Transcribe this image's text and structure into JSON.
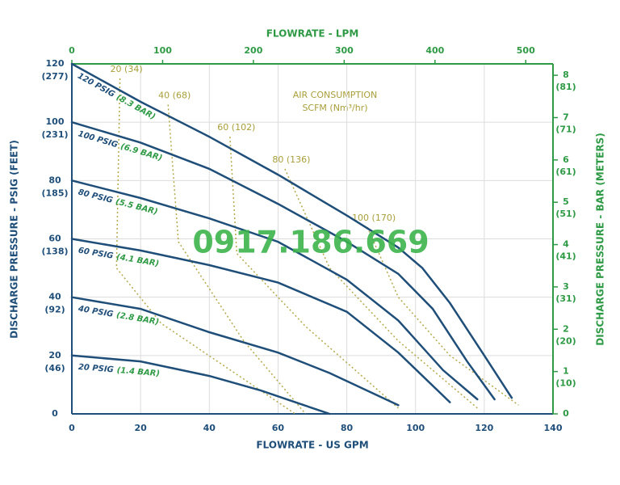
{
  "chart_data": {
    "type": "line",
    "x_label": "FLOWRATE - US GPM",
    "x2_label": "FLOWRATE - LPM",
    "y_label": "DISCHARGE PRESSURE - PSIG (FEET)",
    "y2_label": "DISCHARGE PRESSURE - BAR (METERS)",
    "air_title": "AIR CONSUMPTION",
    "air_unit": "SCFM (Nm³/hr)",
    "watermark": "0917.186.669",
    "xlim": [
      0,
      140
    ],
    "xticks": [
      0,
      20,
      40,
      60,
      80,
      100,
      120,
      140
    ],
    "x2lim": [
      0,
      530
    ],
    "x2ticks": [
      0,
      100,
      200,
      300,
      400,
      500
    ],
    "ylim": [
      0,
      120
    ],
    "yticks": [
      0,
      20,
      40,
      60,
      80,
      100,
      120
    ],
    "ytick_feet": [
      null,
      "(46)",
      "(92)",
      "(138)",
      "(185)",
      "(231)",
      "(277)"
    ],
    "y2lim": [
      0,
      8.27
    ],
    "y2ticks": [
      0,
      1,
      2,
      3,
      4,
      5,
      6,
      7,
      8
    ],
    "y2tick_meters": [
      null,
      "(10)",
      "(20)",
      "(31)",
      "(41)",
      "(51)",
      "(61)",
      "(71)",
      "(81)"
    ],
    "grid": true,
    "series": [
      {
        "name": "120 PSIG",
        "bar_label": "(8.3 BAR)",
        "color": "#1f4e79",
        "x": [
          0,
          20,
          40,
          60,
          80,
          95,
          102,
          110,
          120,
          128
        ],
        "values": [
          120,
          107,
          95,
          82,
          68,
          57,
          50,
          38,
          20,
          5.5
        ]
      },
      {
        "name": "100 PSIG",
        "bar_label": "(6.9 BAR)",
        "color": "#1f4e79",
        "x": [
          0,
          20,
          40,
          60,
          80,
          95,
          105,
          115,
          123
        ],
        "values": [
          100,
          93,
          84,
          72,
          59,
          48,
          36,
          18,
          5
        ]
      },
      {
        "name": "80 PSIG",
        "bar_label": "(5.5 BAR)",
        "color": "#1f4e79",
        "x": [
          0,
          20,
          40,
          60,
          80,
          95,
          108,
          118
        ],
        "values": [
          80,
          74,
          67,
          59,
          46,
          32,
          15,
          5
        ]
      },
      {
        "name": "60 PSIG",
        "bar_label": "(4.1 BAR)",
        "color": "#1f4e79",
        "x": [
          0,
          20,
          40,
          60,
          80,
          95,
          110
        ],
        "values": [
          60,
          56,
          51,
          45,
          35,
          21,
          4
        ]
      },
      {
        "name": "40 PSIG",
        "bar_label": "(2.8 BAR)",
        "color": "#1f4e79",
        "x": [
          0,
          20,
          40,
          60,
          75,
          95
        ],
        "values": [
          40,
          36,
          28,
          21,
          14,
          3
        ]
      },
      {
        "name": "20 PSIG",
        "bar_label": "(1.4 BAR)",
        "color": "#1f4e79",
        "x": [
          0,
          20,
          40,
          55,
          65,
          75
        ],
        "values": [
          20,
          18,
          13,
          8,
          4,
          0
        ]
      }
    ],
    "air_series": [
      {
        "name": "20 (34)",
        "color": "#b3a94a",
        "x": [
          14,
          13,
          26,
          65
        ],
        "values": [
          115,
          50,
          31,
          0
        ]
      },
      {
        "name": "40 (68)",
        "color": "#b3a94a",
        "x": [
          28,
          31,
          50,
          68
        ],
        "values": [
          106,
          59,
          25,
          0
        ]
      },
      {
        "name": "60 (102)",
        "color": "#b3a94a",
        "x": [
          46,
          48,
          68,
          95
        ],
        "values": [
          95,
          55,
          30,
          2
        ]
      },
      {
        "name": "80 (136)",
        "color": "#b3a94a",
        "x": [
          62,
          75,
          95,
          118
        ],
        "values": [
          84,
          50,
          25,
          2
        ]
      },
      {
        "name": "100 (170)",
        "color": "#b3a94a",
        "x": [
          86,
          95,
          110,
          130
        ],
        "values": [
          64,
          40,
          20,
          3
        ]
      }
    ]
  }
}
